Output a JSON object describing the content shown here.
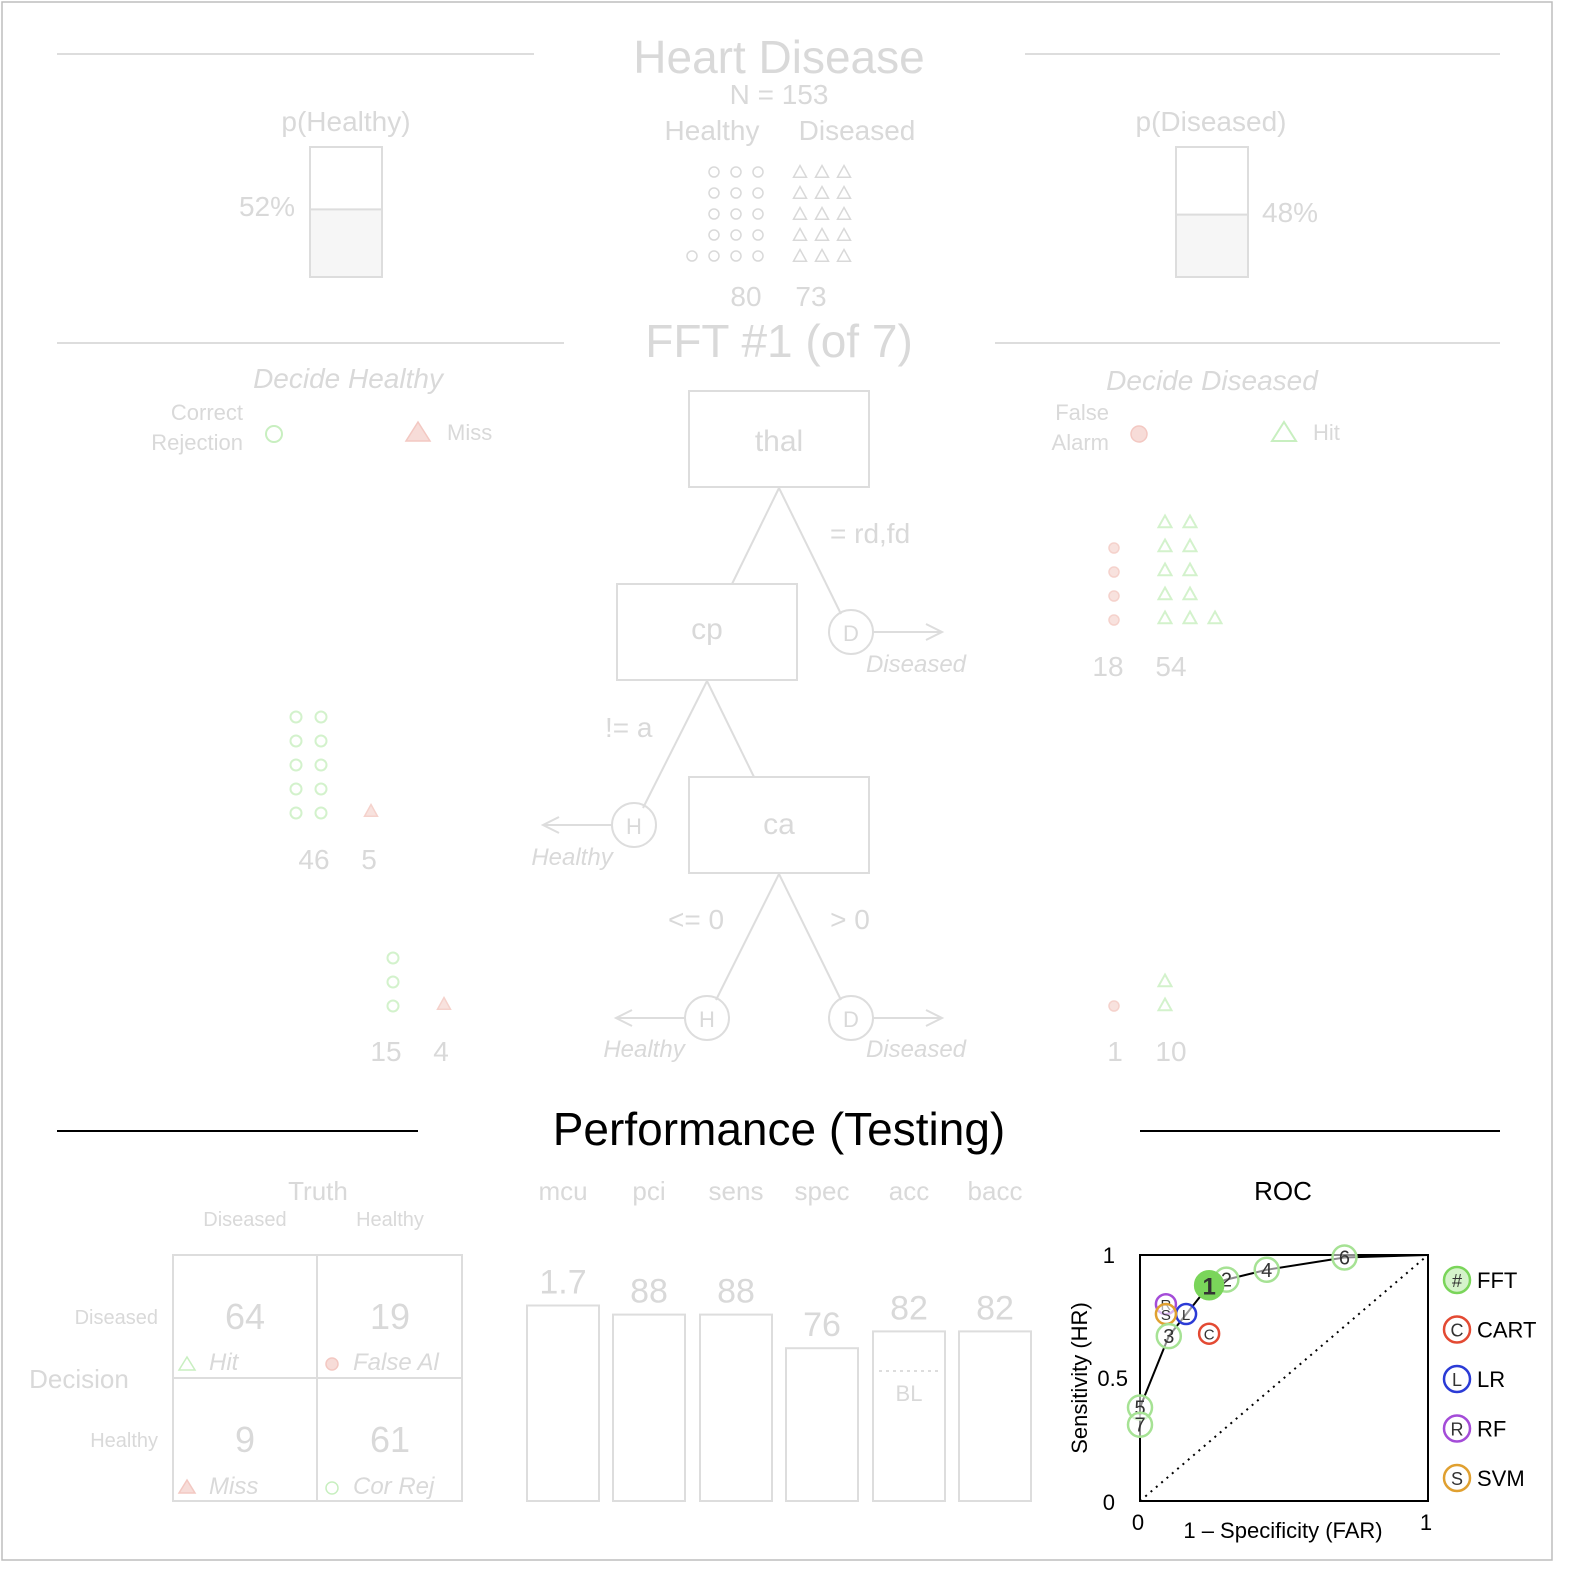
{
  "header": {
    "title": "Heart Disease",
    "n_label": "N = 153",
    "class_labels": [
      "Healthy",
      "Diseased"
    ],
    "class_counts": [
      "80",
      "73"
    ],
    "p_healthy": {
      "label": "p(Healthy)",
      "value_label": "52%",
      "value": 0.52
    },
    "p_diseased": {
      "label": "p(Diseased)",
      "value_label": "48%",
      "value": 0.48
    }
  },
  "tree": {
    "title": "FFT #1 (of 7)",
    "left_heading": "Decide Healthy",
    "right_heading": "Decide Diseased",
    "legend_left": {
      "correct_line1": "Correct",
      "correct_line2": "Rejection",
      "miss": "Miss"
    },
    "legend_right": {
      "fa_line1": "False",
      "fa_line2": "Alarm",
      "hit": "Hit"
    },
    "nodes": {
      "thal": {
        "label": "thal",
        "branch": "= rd,fd",
        "exit": "D",
        "exit_label": "Diseased",
        "left_count": "18",
        "right_count": "54"
      },
      "cp": {
        "label": "cp",
        "branch": "!= a",
        "exit": "H",
        "exit_label": "Healthy",
        "left_count": "46",
        "right_count": "5"
      },
      "ca": {
        "label": "ca",
        "branch_left": "<= 0",
        "branch_right": "> 0",
        "exit_left": "H",
        "exit_left_label": "Healthy",
        "exit_right": "D",
        "exit_right_label": "Diseased",
        "h_left_count": "15",
        "h_right_count": "4",
        "d_left_count": "1",
        "d_right_count": "10"
      }
    }
  },
  "performance": {
    "title": "Performance (Testing)",
    "matrix": {
      "truth": "Truth",
      "col_labels": [
        "Diseased",
        "Healthy"
      ],
      "decision": "Decision",
      "row_labels": [
        "Diseased",
        "Healthy"
      ],
      "cells": [
        {
          "value": "64",
          "label": "Hit"
        },
        {
          "value": "19",
          "label": "False Al"
        },
        {
          "value": "9",
          "label": "Miss"
        },
        {
          "value": "61",
          "label": "Cor Rej"
        }
      ]
    },
    "metrics": [
      {
        "name": "mcu",
        "label": "1.7"
      },
      {
        "name": "pci",
        "label": "88"
      },
      {
        "name": "sens",
        "label": "88"
      },
      {
        "name": "spec",
        "label": "76"
      },
      {
        "name": "acc",
        "label": "82"
      },
      {
        "name": "bacc",
        "label": "82"
      }
    ],
    "baseline_label": "BL"
  },
  "chart_data": {
    "type": "scatter",
    "title": "ROC",
    "xlabel": "1 – Specificity (FAR)",
    "ylabel": "Sensitivity (HR)",
    "xlim": [
      0,
      1
    ],
    "ylim": [
      0,
      1
    ],
    "x_ticks": [
      "0",
      "1"
    ],
    "y_ticks": [
      "0",
      "0.5",
      "1"
    ],
    "fft_points": [
      {
        "label": "1",
        "x": 0.24,
        "y": 0.877,
        "selected": true
      },
      {
        "label": "2",
        "x": 0.3,
        "y": 0.9
      },
      {
        "label": "3",
        "x": 0.1,
        "y": 0.67
      },
      {
        "label": "4",
        "x": 0.44,
        "y": 0.94
      },
      {
        "label": "5",
        "x": 0.0,
        "y": 0.38
      },
      {
        "label": "6",
        "x": 0.71,
        "y": 0.99
      },
      {
        "label": "7",
        "x": 0.0,
        "y": 0.31
      }
    ],
    "fft_curve": [
      [
        0,
        0.31
      ],
      [
        0,
        0.38
      ],
      [
        0.1,
        0.67
      ],
      [
        0.24,
        0.877
      ],
      [
        0.3,
        0.9
      ],
      [
        0.44,
        0.94
      ],
      [
        0.71,
        0.99
      ],
      [
        1,
        1
      ]
    ],
    "other_points": [
      {
        "label": "C",
        "x": 0.24,
        "y": 0.68,
        "color": "#e34a33"
      },
      {
        "label": "L",
        "x": 0.16,
        "y": 0.76,
        "color": "#2b3bd6"
      },
      {
        "label": "R",
        "x": 0.09,
        "y": 0.8,
        "color": "#a44cd8"
      },
      {
        "label": "S",
        "x": 0.09,
        "y": 0.76,
        "color": "#e0a030"
      }
    ],
    "legend": [
      {
        "letter": "#",
        "name": "FFT",
        "color": "#7ad55a"
      },
      {
        "letter": "C",
        "name": "CART",
        "color": "#e34a33"
      },
      {
        "letter": "L",
        "name": "LR",
        "color": "#2b3bd6"
      },
      {
        "letter": "R",
        "name": "RF",
        "color": "#a44cd8"
      },
      {
        "letter": "S",
        "name": "SVM",
        "color": "#e0a030"
      }
    ],
    "legend_position": "right"
  }
}
